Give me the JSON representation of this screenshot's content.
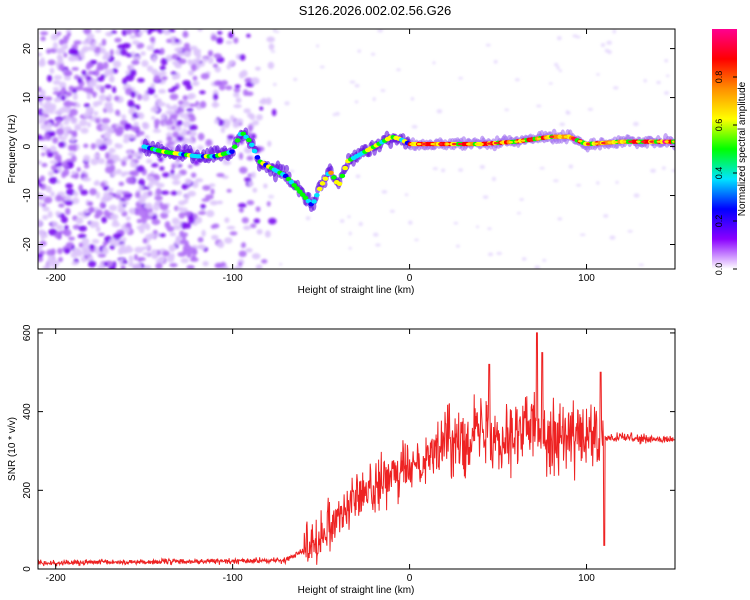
{
  "title": "S126.2026.002.02.56.G26",
  "chart_data": [
    {
      "type": "heatmap",
      "name": "spectrogram",
      "xlabel": "Height of straight line (km)",
      "ylabel": "Frequency (Hz)",
      "xlim": [
        -210,
        150
      ],
      "ylim": [
        -25,
        24
      ],
      "xticks": [
        -200,
        -100,
        0,
        100
      ],
      "yticks": [
        -20,
        -10,
        0,
        10,
        20
      ],
      "colorbar": {
        "label": "Normalized spectral amplitude",
        "range": [
          0,
          1
        ],
        "ticks": [
          0.0,
          0.2,
          0.4,
          0.6,
          0.8
        ],
        "tick_labels": [
          "0.0",
          "0.2",
          "0.4",
          "0.6",
          "0.8"
        ],
        "colors": [
          "#ffffff",
          "#8a00ff",
          "#0000ff",
          "#00e5ff",
          "#00ff00",
          "#ffff00",
          "#ff9000",
          "#ff0000",
          "#ff0090"
        ]
      },
      "ridge": {
        "x": [
          -150,
          -140,
          -130,
          -120,
          -110,
          -100,
          -95,
          -90,
          -85,
          -80,
          -75,
          -70,
          -65,
          -60,
          -55,
          -50,
          -45,
          -40,
          -35,
          -30,
          -25,
          -20,
          -15,
          -10,
          -5,
          0,
          20,
          40,
          60,
          80,
          90,
          100,
          120,
          150
        ],
        "y": [
          0,
          -1,
          -1.5,
          -2,
          -2,
          -1,
          3,
          1,
          -3,
          -4,
          -5,
          -6,
          -8,
          -10,
          -12,
          -8,
          -5,
          -8,
          -3,
          -2,
          -1,
          0,
          1,
          2,
          1.5,
          0.5,
          0.5,
          0.5,
          1,
          2,
          2,
          0.5,
          1,
          1
        ]
      }
    },
    {
      "type": "line",
      "name": "snr",
      "xlabel": "Height of straight line (km)",
      "ylabel": "SNR (10 * v/v)",
      "xlim": [
        -210,
        150
      ],
      "ylim": [
        0,
        610
      ],
      "xticks": [
        -200,
        -100,
        0,
        100
      ],
      "yticks": [
        0,
        200,
        400,
        600
      ],
      "color": "#ee2222",
      "envelope": {
        "x": [
          -210,
          -150,
          -100,
          -70,
          -60,
          -50,
          -40,
          -30,
          -20,
          -10,
          0,
          10,
          20,
          30,
          40,
          50,
          60,
          70,
          80,
          90,
          100,
          110,
          120,
          130,
          140,
          150
        ],
        "y": [
          15,
          18,
          20,
          22,
          50,
          90,
          140,
          180,
          210,
          230,
          260,
          290,
          320,
          340,
          350,
          340,
          350,
          360,
          340,
          340,
          330,
          330,
          335,
          330,
          328,
          330
        ]
      },
      "peaks": {
        "x": [
          72,
          75,
          45,
          108,
          110,
          115
        ],
        "y": [
          600,
          550,
          520,
          500,
          60,
          330
        ]
      }
    }
  ]
}
